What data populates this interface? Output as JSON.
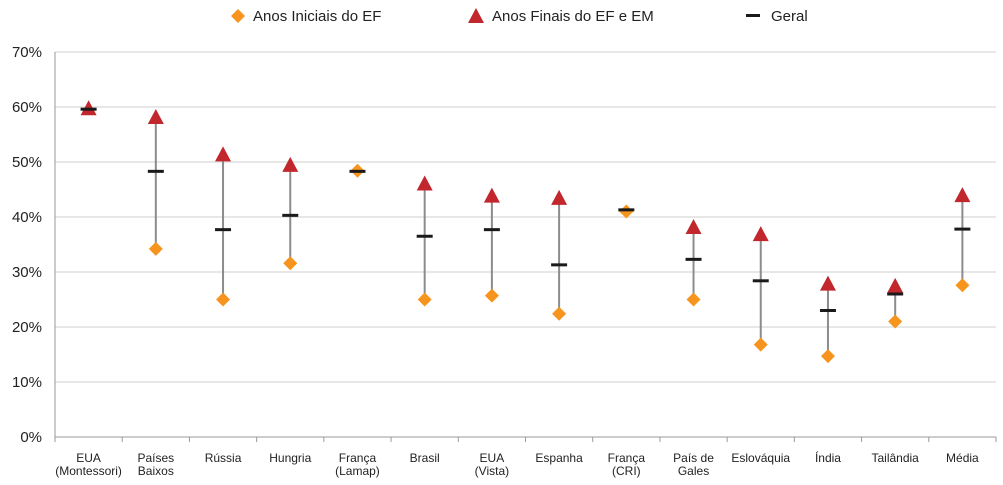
{
  "chart_data": {
    "type": "scatter",
    "categories": [
      [
        "EUA",
        "(Montessori)"
      ],
      [
        "Países",
        "Baixos"
      ],
      [
        "Rússia"
      ],
      [
        "Hungria"
      ],
      [
        "França",
        "(Lamap)"
      ],
      [
        "Brasil"
      ],
      [
        "EUA",
        "(Vista)"
      ],
      [
        "Espanha"
      ],
      [
        "França",
        "(CRI)"
      ],
      [
        "País de",
        "Gales"
      ],
      [
        "Eslováquia"
      ],
      [
        "Índia"
      ],
      [
        "Tailândia"
      ],
      [
        "Média"
      ]
    ],
    "series": [
      {
        "name": "Anos Iniciais do EF",
        "marker": "diamond",
        "color": "#F7941D",
        "values": [
          null,
          34.2,
          25.0,
          31.6,
          48.4,
          25.0,
          25.7,
          22.4,
          41.0,
          25.0,
          16.8,
          14.7,
          21.0,
          27.6
        ]
      },
      {
        "name": "Anos Finais do EF e EM",
        "marker": "triangle",
        "color": "#C1272D",
        "values": [
          59.6,
          58.0,
          51.2,
          49.3,
          null,
          45.9,
          43.7,
          43.3,
          null,
          38.0,
          36.7,
          27.7,
          27.3,
          43.8
        ]
      },
      {
        "name": "Geral",
        "marker": "dash",
        "color": "#1a1a1a",
        "values": [
          59.6,
          48.3,
          37.7,
          40.3,
          48.3,
          36.5,
          37.7,
          31.3,
          41.3,
          32.3,
          28.4,
          23.0,
          26.0,
          37.8
        ]
      }
    ],
    "ylim": [
      0,
      70
    ],
    "yticks": [
      "0%",
      "10%",
      "20%",
      "30%",
      "40%",
      "50%",
      "60%",
      "70%"
    ],
    "grid": true,
    "legend_position": "top"
  },
  "colors": {
    "range_line": "#8c8c8c",
    "grid": "#cfcfcf"
  }
}
